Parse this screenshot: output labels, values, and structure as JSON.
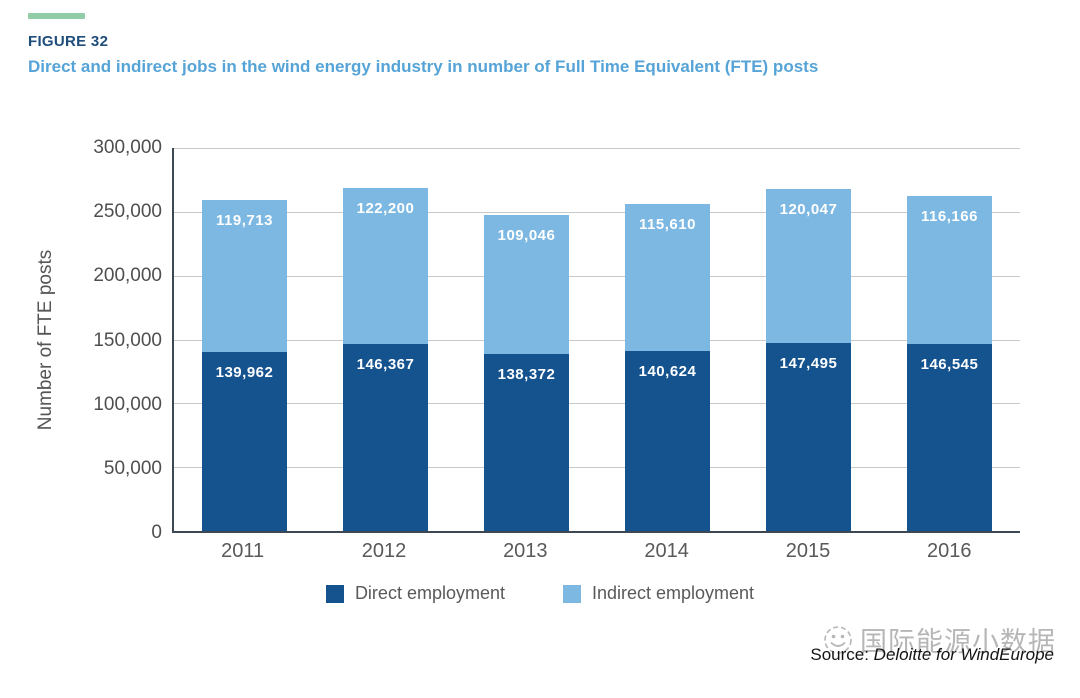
{
  "header": {
    "figure_label": "FIGURE 32",
    "title": "Direct and indirect jobs in the wind energy industry in number of Full Time Equivalent (FTE) posts"
  },
  "chart_data": {
    "type": "bar",
    "stacked": true,
    "categories": [
      "2011",
      "2012",
      "2013",
      "2014",
      "2015",
      "2016"
    ],
    "series": [
      {
        "name": "Direct employment",
        "color": "#15538f",
        "values": [
          139962,
          146367,
          138372,
          140624,
          147495,
          146545
        ],
        "labels": [
          "139,962",
          "146,367",
          "138,372",
          "140,624",
          "147,495",
          "146,545"
        ]
      },
      {
        "name": "Indirect employment",
        "color": "#7db8e3",
        "values": [
          119713,
          122200,
          109046,
          115610,
          120047,
          116166
        ],
        "labels": [
          "119,713",
          "122,200",
          "109,046",
          "115,610",
          "120,047",
          "116,166"
        ]
      }
    ],
    "title": "Direct and indirect jobs in the wind energy industry in number of Full Time Equivalent (FTE) posts",
    "xlabel": "",
    "ylabel": "Number of FTE posts",
    "ylim": [
      0,
      300000
    ],
    "ytick_step": 50000,
    "yticks": [
      "0",
      "50,000",
      "100,000",
      "150,000",
      "200,000",
      "250,000",
      "300,000"
    ],
    "grid": true,
    "legend_position": "bottom"
  },
  "footer": {
    "source_prefix": "Source: ",
    "source_name": "Deloitte for WindEurope"
  },
  "watermark": {
    "text": "国际能源小数据",
    "icon": "wechat-icon"
  },
  "colors": {
    "direct": "#15538f",
    "indirect": "#7db8e3",
    "accent_dash": "#92cca6",
    "figure_label": "#1f4e7a",
    "subtitle": "#56a4d7",
    "axis_line": "#3d4853",
    "gridline": "#c9c9c9",
    "tick_text": "#4f4f4f",
    "watermark_gray": "#9b9b9b"
  }
}
